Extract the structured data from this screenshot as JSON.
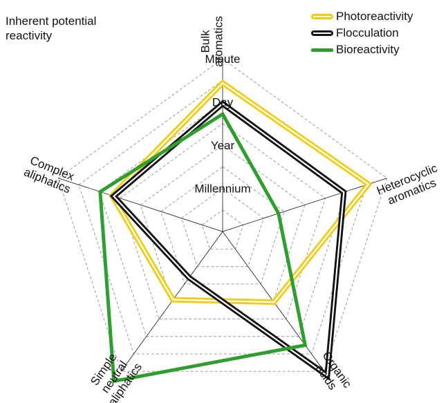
{
  "chart_data": {
    "type": "radar",
    "title": "Inherent potential reactivity",
    "axes": [
      [
        "Bulk",
        "aromatics"
      ],
      [
        "Heterocyclic",
        "aromatics"
      ],
      [
        "Organic",
        "acids"
      ],
      [
        "Simple",
        "neutral",
        "aliphatics"
      ],
      [
        "Complex",
        "aliphatics"
      ]
    ],
    "levels": [
      "Millennium",
      "Year",
      "Day",
      "Minute"
    ],
    "level_values": [
      1,
      2,
      3,
      4
    ],
    "rmax": 4,
    "series": [
      {
        "name": "Photoreactivity",
        "values": [
          3.44,
          3.55,
          2.02,
          1.95,
          2.69
        ],
        "color": "#f2cc1a",
        "style": "double"
      },
      {
        "name": "Flocculation",
        "values": [
          2.96,
          2.95,
          4.12,
          1.32,
          2.65
        ],
        "color": "#111111",
        "style": "double"
      },
      {
        "name": "Bioreactivity",
        "values": [
          2.72,
          1.36,
          3.25,
          4.28,
          2.98
        ],
        "color": "#2e9e2e",
        "style": "single"
      }
    ],
    "grid": true,
    "legend_position": "top-right"
  }
}
